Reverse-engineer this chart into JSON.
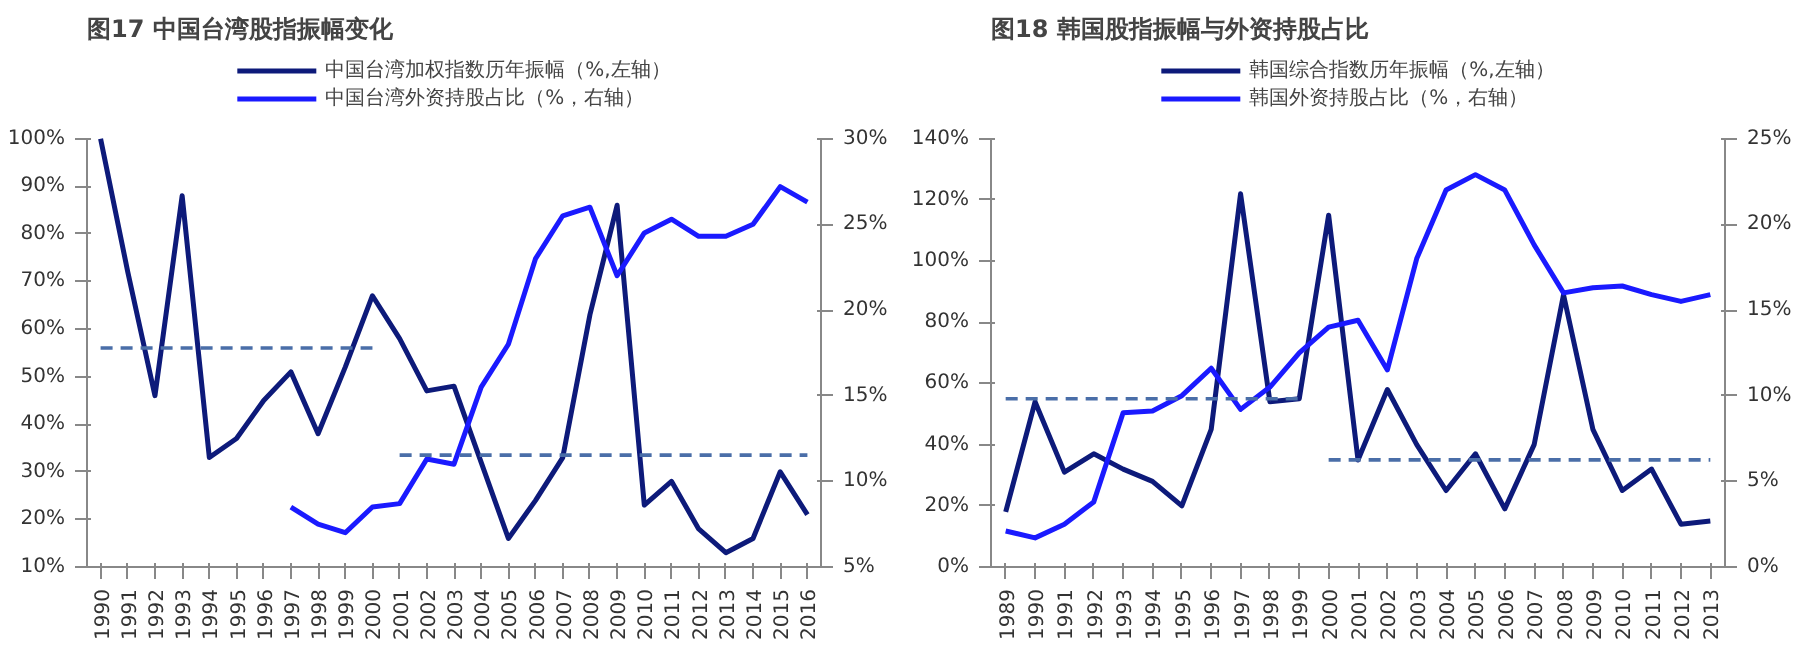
{
  "chart_data": [
    {
      "type": "line",
      "title": "图17 中国台湾股指振幅变化",
      "categories": [
        "1990",
        "1991",
        "1992",
        "1993",
        "1994",
        "1995",
        "1996",
        "1997",
        "1998",
        "1999",
        "2000",
        "2001",
        "2002",
        "2003",
        "2004",
        "2005",
        "2006",
        "2007",
        "2008",
        "2009",
        "2010",
        "2011",
        "2012",
        "2013",
        "2014",
        "2015",
        "2016"
      ],
      "series": [
        {
          "name": "中国台湾加权指数历年振幅（%,左轴）",
          "color": "#0d1a7a",
          "values": [
            100,
            72,
            46,
            88,
            33,
            37,
            45,
            51,
            38,
            52,
            67,
            58,
            47,
            48,
            32,
            16,
            24,
            33,
            63,
            86,
            23,
            28,
            18,
            13,
            16,
            30,
            21
          ]
        },
        {
          "name": "中国台湾外资持股占比（%，右轴）",
          "color": "#1a1aff",
          "axis": "y2",
          "values": [
            null,
            null,
            null,
            null,
            null,
            null,
            null,
            8.5,
            7.5,
            7,
            8.5,
            8.7,
            11.3,
            11,
            15.5,
            18,
            23,
            25.5,
            26,
            22,
            24.5,
            25.3,
            24.3,
            24.3,
            25,
            27.2,
            26.3
          ]
        },
        {
          "color": "#4a6ea8",
          "line_style": "dashed",
          "values": [
            56,
            56,
            56,
            56,
            56,
            56,
            56,
            56,
            56,
            56,
            56,
            null,
            null,
            null,
            null,
            null,
            null,
            null,
            null,
            null,
            null,
            null,
            null,
            null,
            null,
            null,
            null
          ]
        },
        {
          "color": "#4a6ea8",
          "line_style": "dashed",
          "values": [
            null,
            null,
            null,
            null,
            null,
            null,
            null,
            null,
            null,
            null,
            null,
            33.5,
            33.5,
            33.5,
            33.5,
            33.5,
            33.5,
            33.5,
            33.5,
            33.5,
            33.5,
            33.5,
            33.5,
            33.5,
            33.5,
            33.5,
            33.5
          ]
        }
      ],
      "ylim": [
        10,
        100
      ],
      "yticks": [
        {
          "value": 10,
          "label": "10%"
        },
        {
          "value": 20,
          "label": "20%"
        },
        {
          "value": 30,
          "label": "30%"
        },
        {
          "value": 40,
          "label": "40%"
        },
        {
          "value": 50,
          "label": "50%"
        },
        {
          "value": 60,
          "label": "60%"
        },
        {
          "value": 70,
          "label": "70%"
        },
        {
          "value": 80,
          "label": "80%"
        },
        {
          "value": 90,
          "label": "90%"
        },
        {
          "value": 100,
          "label": "100%"
        }
      ],
      "y2lim": [
        5,
        30
      ],
      "y2ticks": [
        {
          "value": 5,
          "label": "5%"
        },
        {
          "value": 10,
          "label": "10%"
        },
        {
          "value": 15,
          "label": "15%"
        },
        {
          "value": 20,
          "label": "20%"
        },
        {
          "value": 25,
          "label": "25%"
        },
        {
          "value": 30,
          "label": "30%"
        }
      ],
      "legend": "top",
      "marker": "none"
    },
    {
      "type": "line",
      "title": "图18 韩国股指振幅与外资持股占比",
      "categories": [
        "1989",
        "1990",
        "1991",
        "1992",
        "1993",
        "1994",
        "1995",
        "1996",
        "1997",
        "1998",
        "1999",
        "2000",
        "2001",
        "2002",
        "2003",
        "2004",
        "2005",
        "2006",
        "2007",
        "2008",
        "2009",
        "2010",
        "2011",
        "2012",
        "2013"
      ],
      "series": [
        {
          "name": "韩国综合指数历年振幅（%,左轴）",
          "color": "#0d1a7a",
          "values": [
            18,
            54,
            31,
            37,
            32,
            28,
            20,
            45,
            122,
            54,
            55,
            115,
            35,
            58,
            40,
            25,
            37,
            19,
            40,
            89,
            45,
            25,
            32,
            14,
            15
          ]
        },
        {
          "name": "韩国外资持股占比（%，右轴）",
          "color": "#1a1aff",
          "axis": "y2",
          "values": [
            2.1,
            1.7,
            2.5,
            3.8,
            9,
            9.1,
            10,
            11.6,
            9.2,
            10.5,
            12.5,
            14,
            14.4,
            11.5,
            18,
            22,
            22.9,
            22,
            18.8,
            16,
            16.3,
            16.4,
            15.9,
            15.5,
            15.9
          ]
        },
        {
          "color": "#4a6ea8",
          "line_style": "dashed",
          "values": [
            55,
            55,
            55,
            55,
            55,
            55,
            55,
            55,
            55,
            55,
            55,
            null,
            null,
            null,
            null,
            null,
            null,
            null,
            null,
            null,
            null,
            null,
            null,
            null,
            null
          ]
        },
        {
          "color": "#4a6ea8",
          "line_style": "dashed",
          "values": [
            null,
            null,
            null,
            null,
            null,
            null,
            null,
            null,
            null,
            null,
            null,
            35,
            35,
            35,
            35,
            35,
            35,
            35,
            35,
            35,
            35,
            35,
            35,
            35,
            35
          ]
        }
      ],
      "ylim": [
        0,
        140
      ],
      "yticks": [
        {
          "value": 0,
          "label": "0%"
        },
        {
          "value": 20,
          "label": "20%"
        },
        {
          "value": 40,
          "label": "40%"
        },
        {
          "value": 60,
          "label": "60%"
        },
        {
          "value": 80,
          "label": "80%"
        },
        {
          "value": 100,
          "label": "100%"
        },
        {
          "value": 120,
          "label": "120%"
        },
        {
          "value": 140,
          "label": "140%"
        }
      ],
      "y2lim": [
        0,
        25
      ],
      "y2ticks": [
        {
          "value": 0,
          "label": "0%"
        },
        {
          "value": 5,
          "label": "5%"
        },
        {
          "value": 10,
          "label": "10%"
        },
        {
          "value": 15,
          "label": "15%"
        },
        {
          "value": 20,
          "label": "20%"
        },
        {
          "value": 25,
          "label": "25%"
        }
      ],
      "legend": "top",
      "marker": "none"
    }
  ]
}
